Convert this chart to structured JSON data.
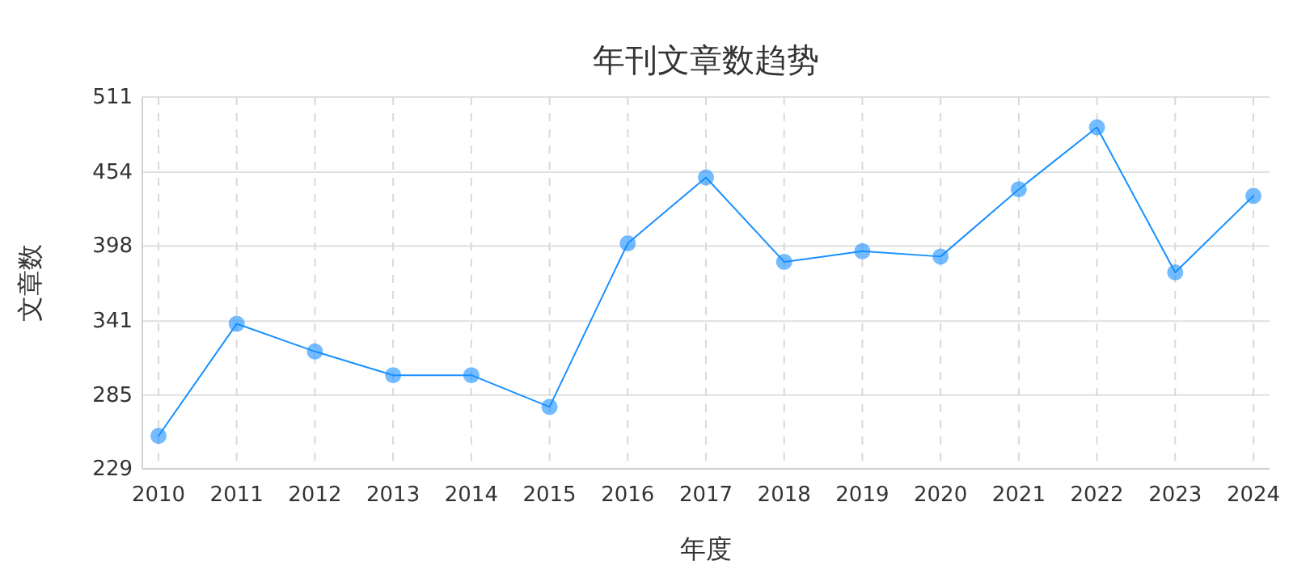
{
  "chart_data": {
    "type": "line",
    "title": "年刊文章数趋势",
    "xlabel": "年度",
    "ylabel": "文章数",
    "categories": [
      "2010",
      "2011",
      "2012",
      "2013",
      "2014",
      "2015",
      "2016",
      "2017",
      "2018",
      "2019",
      "2020",
      "2021",
      "2022",
      "2023",
      "2024"
    ],
    "series": [
      {
        "color": "#1890ff",
        "values": [
          254,
          339,
          318,
          300,
          300,
          276,
          400,
          450,
          386,
          394,
          390,
          441,
          488,
          378,
          436
        ]
      }
    ],
    "ylim": [
      229,
      511
    ],
    "yticks": [
      229,
      285,
      341,
      398,
      454,
      511
    ],
    "grid": true,
    "marker": "circle",
    "line_style": "solid"
  }
}
